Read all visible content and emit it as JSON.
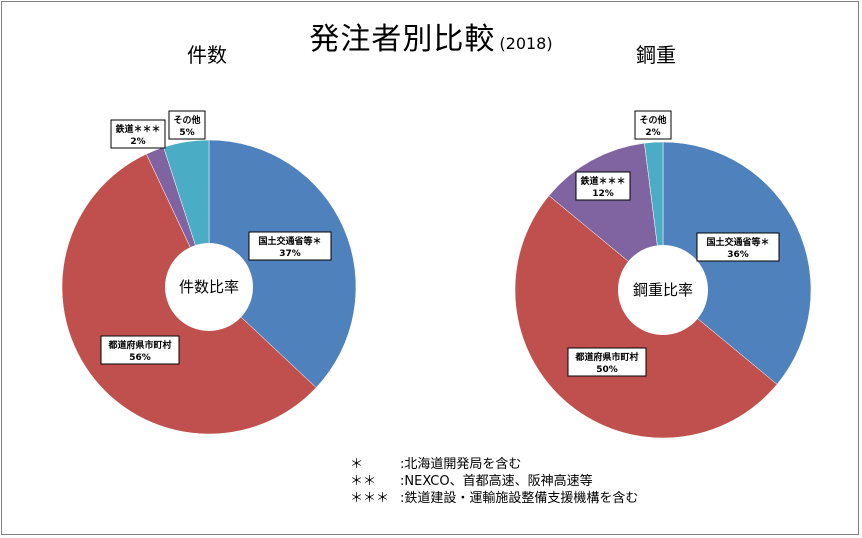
{
  "title": "発注者別比較",
  "title_year": "(2018)",
  "notes": [
    {
      "mark": "＊",
      "text": ":北海道開発局を含む"
    },
    {
      "mark": "＊＊",
      "text": ":NEXCO、首都高速、阪神高速等"
    },
    {
      "mark": "＊＊＊",
      "text": ":鉄道建設・運輸施設整備支援機構を含む"
    }
  ],
  "colors": {
    "national": "#4F81BD",
    "local": "#C0504D",
    "railway": "#8064A2",
    "other": "#4BACC6"
  },
  "chart_data": [
    {
      "type": "pie",
      "title": "件数",
      "center_label": "件数比率",
      "slices": [
        {
          "label": "国土交通省等＊",
          "value": 37,
          "display": "37%",
          "color": "#4F81BD"
        },
        {
          "label": "都道府県市町村",
          "value": 56,
          "display": "56%",
          "color": "#C0504D"
        },
        {
          "label": "鉄道＊＊＊",
          "value": 2,
          "display": "2%",
          "color": "#8064A2"
        },
        {
          "label": "その他",
          "value": 5,
          "display": "5%",
          "color": "#4BACC6"
        }
      ]
    },
    {
      "type": "pie",
      "title": "鋼重",
      "center_label": "鋼重比率",
      "slices": [
        {
          "label": "国土交通省等＊",
          "value": 36,
          "display": "36%",
          "color": "#4F81BD"
        },
        {
          "label": "都道府県市町村",
          "value": 50,
          "display": "50%",
          "color": "#C0504D"
        },
        {
          "label": "鉄道＊＊＊",
          "value": 12,
          "display": "12%",
          "color": "#8064A2"
        },
        {
          "label": "その他",
          "value": 2,
          "display": "2%",
          "color": "#4BACC6"
        }
      ]
    }
  ]
}
